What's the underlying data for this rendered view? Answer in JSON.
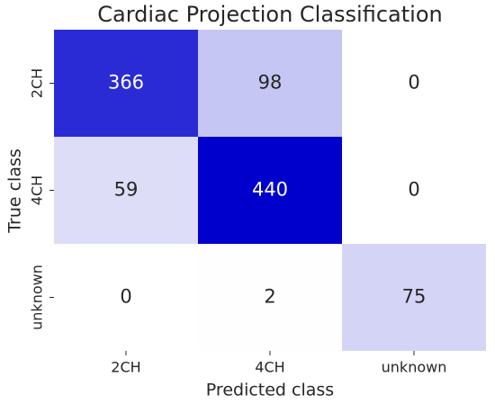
{
  "chart_data": {
    "type": "heatmap",
    "title": "Cardiac Projection Classification",
    "x_label": "Predicted class",
    "y_label": "True class",
    "x_categories": [
      "2CH",
      "4CH",
      "unknown"
    ],
    "y_categories": [
      "2CH",
      "4CH",
      "unknown"
    ],
    "values": [
      [
        366,
        98,
        0
      ],
      [
        59,
        440,
        0
      ],
      [
        0,
        2,
        75
      ]
    ],
    "color_low": "#ffffff",
    "color_high": "#0000cc"
  }
}
